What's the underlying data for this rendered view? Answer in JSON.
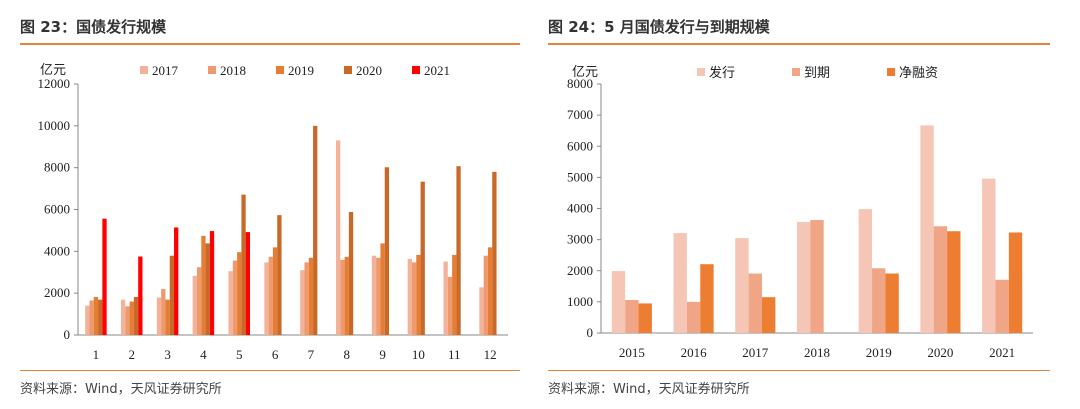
{
  "chart_data": [
    {
      "type": "bar",
      "title": "图 23：国债发行规模",
      "ylabel": "亿元",
      "ylim": [
        0,
        12000
      ],
      "yticks": [
        0,
        2000,
        4000,
        6000,
        8000,
        10000,
        12000
      ],
      "categories": [
        "1",
        "2",
        "3",
        "4",
        "5",
        "6",
        "7",
        "8",
        "9",
        "10",
        "11",
        "12"
      ],
      "series": [
        {
          "name": "2017",
          "color": "#f4b29a",
          "values": [
            1400,
            1690,
            1790,
            2830,
            3050,
            3470,
            3100,
            9300,
            3790,
            3640,
            3510,
            2280
          ]
        },
        {
          "name": "2018",
          "color": "#ee9a6c",
          "values": [
            1650,
            1370,
            2200,
            3240,
            3560,
            3740,
            3470,
            3590,
            3690,
            3470,
            2780,
            3790
          ]
        },
        {
          "name": "2019",
          "color": "#e67d35",
          "values": [
            1820,
            1600,
            1690,
            4740,
            3960,
            4190,
            3690,
            3740,
            4380,
            3830,
            3830,
            4190
          ]
        },
        {
          "name": "2020",
          "color": "#c8692a",
          "values": [
            1690,
            1820,
            3790,
            4380,
            6710,
            5730,
            10000,
            5880,
            8020,
            7330,
            8070,
            7800
          ]
        },
        {
          "name": "2021",
          "color": "#ff0000",
          "values": [
            5560,
            3750,
            5140,
            4970,
            4920,
            null,
            null,
            null,
            null,
            null,
            null,
            null
          ]
        }
      ],
      "source": "资料来源：Wind，天风证券研究所",
      "legend": "top"
    },
    {
      "type": "bar",
      "title": "图 24：5 月国债发行与到期规模",
      "ylabel": "亿元",
      "ylim": [
        0,
        8000
      ],
      "yticks": [
        0,
        1000,
        2000,
        3000,
        4000,
        5000,
        6000,
        7000,
        8000
      ],
      "categories": [
        "2015",
        "2016",
        "2017",
        "2018",
        "2019",
        "2020",
        "2021"
      ],
      "series": [
        {
          "name": "发行",
          "color": "#f5c6b5",
          "values": [
            1990,
            3210,
            3050,
            3570,
            3980,
            6670,
            4960
          ]
        },
        {
          "name": "到期",
          "color": "#f0a686",
          "values": [
            1060,
            1000,
            1910,
            3630,
            2080,
            3430,
            1710
          ]
        },
        {
          "name": "净融资",
          "color": "#ed7d31",
          "values": [
            950,
            2210,
            1150,
            null,
            1910,
            3270,
            3230
          ]
        }
      ],
      "source": "资料来源：Wind，天风证券研究所",
      "legend": "top"
    }
  ]
}
